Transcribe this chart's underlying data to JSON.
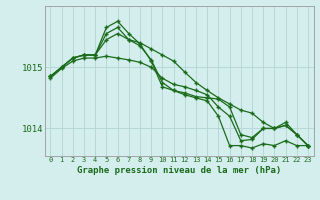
{
  "title": "Graphe pression niveau de la mer (hPa)",
  "background_color": "#d4eeee",
  "grid_color": "#b8d8d8",
  "line_color": "#1a6b1a",
  "xlim": [
    -0.5,
    23.5
  ],
  "ylim": [
    1013.55,
    1016.0
  ],
  "yticks": [
    1014,
    1015
  ],
  "xticks": [
    0,
    1,
    2,
    3,
    4,
    5,
    6,
    7,
    8,
    9,
    10,
    11,
    12,
    13,
    14,
    15,
    16,
    17,
    18,
    19,
    20,
    21,
    22,
    23
  ],
  "series": [
    [
      1014.85,
      1015.0,
      1015.15,
      1015.2,
      1015.2,
      1015.55,
      1015.65,
      1015.45,
      1015.35,
      1015.12,
      1014.75,
      1014.62,
      1014.55,
      1014.5,
      1014.45,
      1014.2,
      1013.72,
      1013.72,
      1013.68,
      1013.75,
      1013.72,
      1013.8,
      1013.72,
      1013.72
    ],
    [
      1014.85,
      1015.0,
      1015.15,
      1015.2,
      1015.2,
      1015.65,
      1015.75,
      1015.55,
      1015.38,
      1015.1,
      1014.68,
      1014.62,
      1014.58,
      1014.52,
      1014.5,
      1014.48,
      1014.35,
      1013.9,
      1013.85,
      1014.0,
      1014.0,
      1014.05,
      1013.9,
      1013.72
    ],
    [
      1014.85,
      1015.0,
      1015.15,
      1015.2,
      1015.2,
      1015.45,
      1015.55,
      1015.45,
      1015.4,
      1015.3,
      1015.2,
      1015.1,
      1014.92,
      1014.75,
      1014.62,
      1014.5,
      1014.4,
      1014.3,
      1014.25,
      1014.1,
      1014.0,
      1014.05,
      1013.9,
      1013.72
    ],
    [
      1014.82,
      1014.98,
      1015.1,
      1015.15,
      1015.15,
      1015.18,
      1015.15,
      1015.12,
      1015.08,
      1015.0,
      1014.82,
      1014.72,
      1014.68,
      1014.62,
      1014.55,
      1014.35,
      1014.2,
      1013.8,
      1013.82,
      1014.0,
      1014.0,
      1014.1,
      1013.9,
      1013.72
    ]
  ]
}
